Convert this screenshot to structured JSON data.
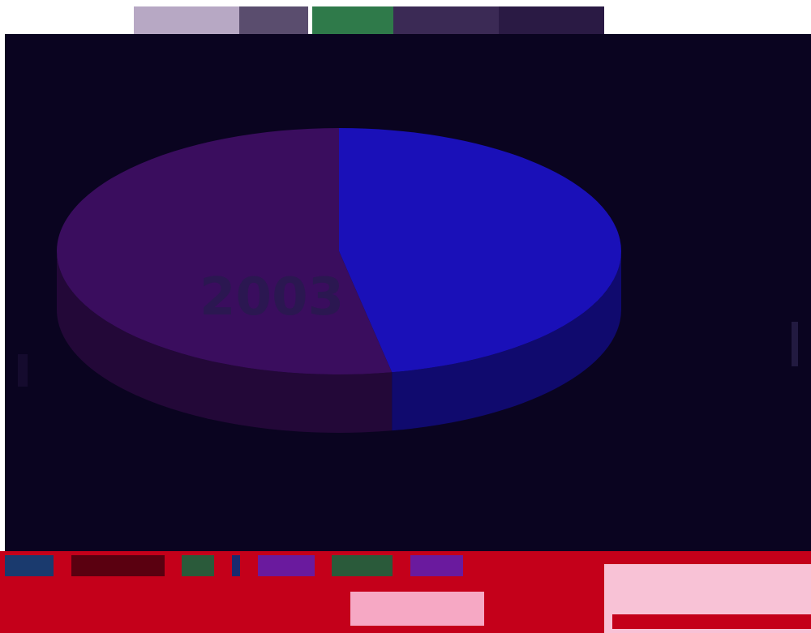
{
  "top_strip": {
    "label_left": "",
    "blocks": [
      {
        "color": "#e8e4ef"
      },
      {
        "color": "#b7a8c4"
      },
      {
        "color": "#8d7e9c"
      },
      {
        "color": "#5a4d6e"
      },
      {
        "color": "#3b2a55"
      },
      {
        "color": "#2a1a44"
      }
    ]
  },
  "slide": {
    "title": "",
    "watermark": "2003"
  },
  "chart_data": {
    "type": "pie",
    "title": "",
    "slices": [
      {
        "label": "",
        "value": 47,
        "color": "#1a10b8"
      },
      {
        "label": "",
        "value": 53,
        "color": "#3a0d5e"
      }
    ],
    "legend": "none",
    "style": "3d"
  },
  "bottom_band": {
    "small_text": "",
    "left_label": "",
    "mid_label": "",
    "panel_text": "",
    "colors": {
      "band": "#c4001a",
      "pink": "#f6a8c4"
    }
  }
}
